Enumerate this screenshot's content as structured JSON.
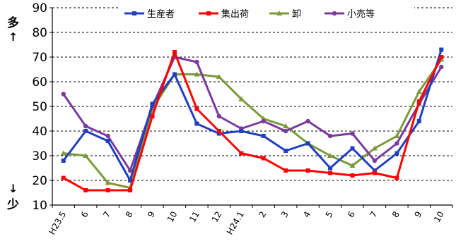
{
  "chart_data": {
    "type": "line",
    "categories": [
      "H23.5",
      "6",
      "7",
      "8",
      "9",
      "10",
      "11",
      "12",
      "H24.1",
      "2",
      "3",
      "4",
      "5",
      "6",
      "7",
      "8",
      "9",
      "10"
    ],
    "ylim": [
      10,
      90
    ],
    "yticks": [
      10,
      20,
      30,
      40,
      50,
      60,
      70,
      80,
      90
    ],
    "grid": "horizontal-dashed",
    "legend_position": "top",
    "top_label": "多",
    "bottom_label": "少",
    "up_arrow": "↑",
    "down_arrow": "↓",
    "series": [
      {
        "name": "生産者",
        "color": "#1f3fbf",
        "marker": "square",
        "values": [
          28,
          40,
          36,
          20,
          51,
          63,
          43,
          39,
          40,
          38,
          32,
          35,
          25,
          33,
          24,
          31,
          44,
          73
        ]
      },
      {
        "name": "集出荷",
        "color": "#FF0000",
        "marker": "square",
        "values": [
          21,
          16,
          16,
          16,
          46,
          72,
          49,
          40,
          31,
          29,
          24,
          24,
          23,
          22,
          23,
          21,
          52,
          70
        ]
      },
      {
        "name": "卸",
        "color": "#7a9a3a",
        "marker": "triangle",
        "values": [
          31,
          30,
          19,
          17,
          49,
          63,
          63,
          62,
          53,
          45,
          42,
          35,
          30,
          26,
          33,
          38,
          56,
          69
        ]
      },
      {
        "name": "小売等",
        "color": "#7a3a9e",
        "marker": "circle",
        "values": [
          55,
          42,
          38,
          24,
          50,
          70,
          68,
          46,
          41,
          44,
          40,
          44,
          38,
          39,
          28,
          35,
          51,
          66
        ]
      }
    ]
  }
}
